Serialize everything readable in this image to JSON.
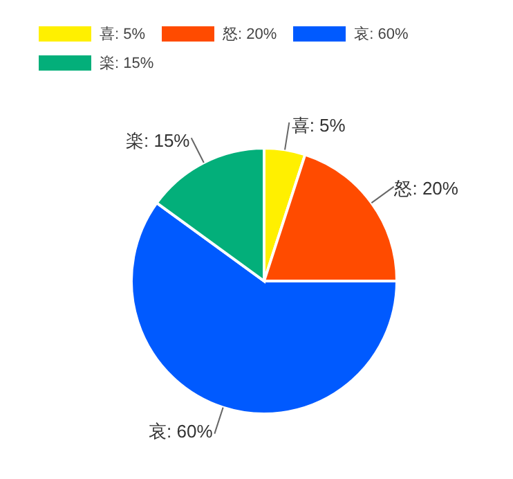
{
  "chart_data": {
    "type": "pie",
    "categories": [
      "喜: 5%",
      "怒: 20%",
      "哀: 60%",
      "楽: 15%"
    ],
    "values": [
      5,
      20,
      60,
      15
    ],
    "colors": [
      "#fff000",
      "#ff4b00",
      "#005aff",
      "#03af7a"
    ],
    "value_labels": [
      "喜: 5%",
      "怒: 20%",
      "哀: 60%",
      "楽: 15%"
    ],
    "legend": "top left"
  }
}
